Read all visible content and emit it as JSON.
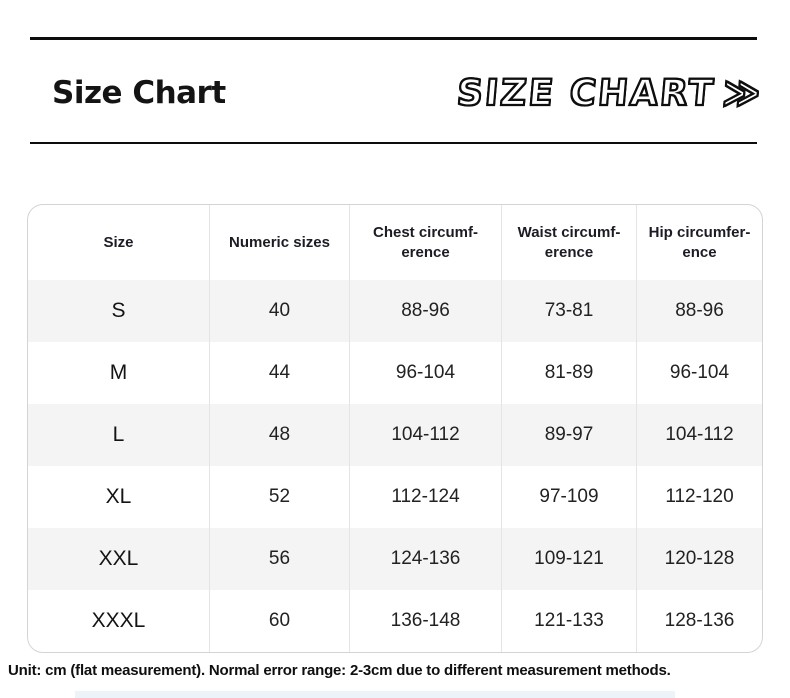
{
  "page": {
    "heading": "Size Chart",
    "stylized_heading": "SIZE CHART",
    "stylized_arrows": "≫",
    "footnote": "Unit: cm (flat measurement). Normal error range: 2-3cm due to different measurement methods."
  },
  "colors": {
    "rule": "#0d0d0d",
    "row_alt_background": "#f4f4f4",
    "table_border": "#d4d4d4",
    "column_divider": "#e4e4e4",
    "text": "#1c1c24"
  },
  "table": {
    "headers": [
      "Size",
      "Numeric sizes",
      "Chest circumf-\nerence",
      "Waist circumf-\nerence",
      "Hip circumfer-\nence"
    ],
    "rows": [
      {
        "size": "S",
        "numeric": "40",
        "chest": "88-96",
        "waist": "73-81",
        "hip": "88-96"
      },
      {
        "size": "M",
        "numeric": "44",
        "chest": "96-104",
        "waist": "81-89",
        "hip": "96-104"
      },
      {
        "size": "L",
        "numeric": "48",
        "chest": "104-112",
        "waist": "89-97",
        "hip": "104-112"
      },
      {
        "size": "XL",
        "numeric": "52",
        "chest": "112-124",
        "waist": "97-109",
        "hip": "112-120"
      },
      {
        "size": "XXL",
        "numeric": "56",
        "chest": "124-136",
        "waist": "109-121",
        "hip": "120-128"
      },
      {
        "size": "XXXL",
        "numeric": "60",
        "chest": "136-148",
        "waist": "121-133",
        "hip": "128-136"
      }
    ]
  }
}
